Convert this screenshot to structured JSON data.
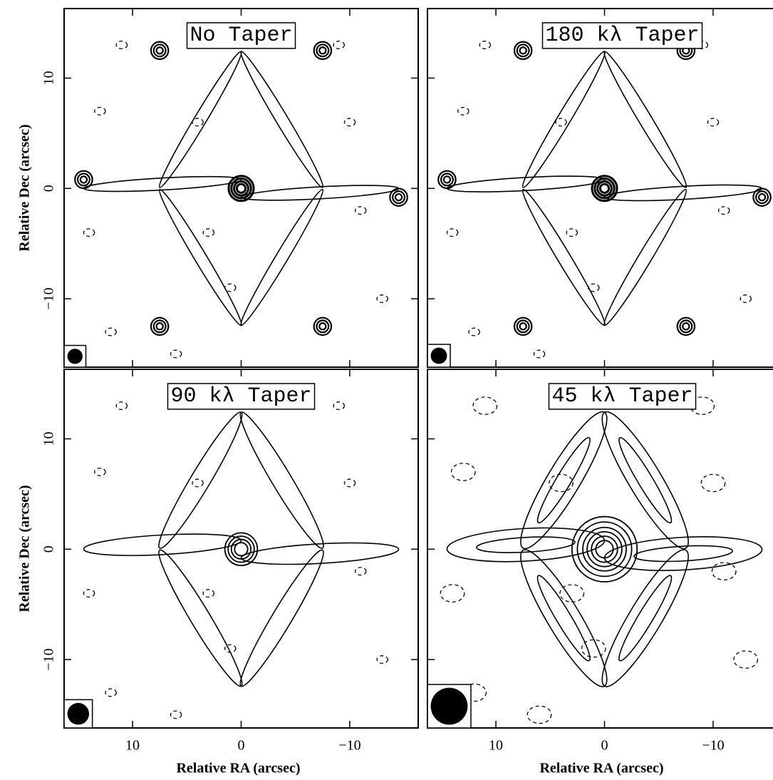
{
  "chart_data": [
    {
      "type": "contour",
      "title": "No Taper",
      "ylabel": "Relative Dec (arcsec)",
      "xlim": [
        16.3,
        -16.3
      ],
      "ylim": [
        -16.2,
        16.3
      ],
      "xticks": [
        10,
        0,
        {
          "value": -10,
          "label": "−10"
        }
      ],
      "yticks": [
        {
          "value": -10,
          "label": "−10"
        },
        0,
        10
      ]
    },
    {
      "type": "contour",
      "title": "180 kλ Taper",
      "xlim": [
        16.3,
        -16.3
      ],
      "ylim": [
        -16.2,
        16.3
      ],
      "xticks": [
        10,
        0,
        {
          "value": -10,
          "label": "−10"
        }
      ],
      "yticks": [
        {
          "value": -10,
          "label": "−10"
        },
        0,
        10
      ]
    },
    {
      "type": "contour",
      "title": "90 kλ Taper",
      "xlabel": "Relative RA (arcsec)",
      "ylabel": "Relative Dec (arcsec)",
      "xlim": [
        16.3,
        -16.3
      ],
      "ylim": [
        -16.2,
        16.3
      ],
      "xticks": [
        10,
        0,
        {
          "value": -10,
          "label": "−10"
        }
      ],
      "yticks": [
        {
          "value": -10,
          "label": "−10"
        },
        0,
        10
      ]
    },
    {
      "type": "contour",
      "title": "45 kλ Taper",
      "xlabel": "Relative RA (arcsec)",
      "xlim": [
        16.3,
        -16.3
      ],
      "ylim": [
        -16.2,
        16.3
      ],
      "xticks": [
        10,
        0,
        {
          "value": -10,
          "label": "−10"
        }
      ],
      "yticks": [
        {
          "value": -10,
          "label": "−10"
        },
        0,
        10
      ]
    }
  ]
}
